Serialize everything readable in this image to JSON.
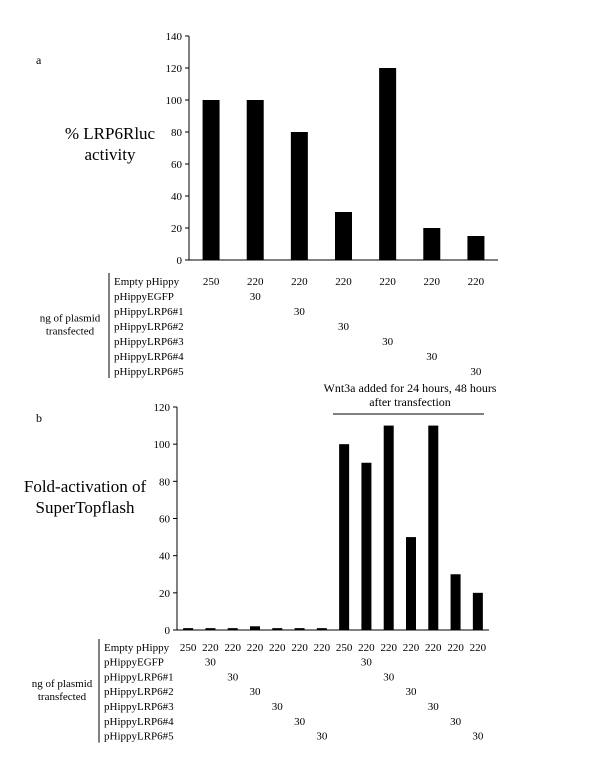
{
  "chart_data": [
    {
      "type": "bar",
      "panel_label": "a",
      "ylabel_lines": [
        "% LRP6Rluc",
        "activity"
      ],
      "ylim": [
        0,
        140
      ],
      "yticks": [
        0,
        20,
        40,
        60,
        80,
        100,
        120,
        140
      ],
      "values": [
        100,
        100,
        80,
        30,
        120,
        20,
        15
      ],
      "bar_color": "#000000",
      "table": {
        "group_label_lines": [
          "ng of plasmid",
          "transfected"
        ],
        "rows": [
          {
            "label": "Empty pHippy",
            "cells": [
              "250",
              "220",
              "220",
              "220",
              "220",
              "220",
              "220"
            ]
          },
          {
            "label": "pHippyEGFP",
            "cells": [
              "",
              "30",
              "",
              "",
              "",
              "",
              ""
            ]
          },
          {
            "label": "pHippyLRP6#1",
            "cells": [
              "",
              "",
              "30",
              "",
              "",
              "",
              ""
            ]
          },
          {
            "label": "pHippyLRP6#2",
            "cells": [
              "",
              "",
              "",
              "30",
              "",
              "",
              ""
            ]
          },
          {
            "label": "pHippyLRP6#3",
            "cells": [
              "",
              "",
              "",
              "",
              "30",
              "",
              ""
            ]
          },
          {
            "label": "pHippyLRP6#4",
            "cells": [
              "",
              "",
              "",
              "",
              "",
              "30",
              ""
            ]
          },
          {
            "label": "pHippyLRP6#5",
            "cells": [
              "",
              "",
              "",
              "",
              "",
              "",
              "30"
            ]
          }
        ]
      }
    },
    {
      "type": "bar",
      "panel_label": "b",
      "ylabel_lines": [
        "Fold-activation of",
        "SuperTopflash"
      ],
      "ylim": [
        0,
        120
      ],
      "yticks": [
        0,
        20,
        40,
        60,
        80,
        100,
        120
      ],
      "values": [
        1,
        1,
        1,
        2,
        1,
        1,
        1,
        100,
        90,
        110,
        50,
        110,
        30,
        20
      ],
      "bar_color": "#000000",
      "annotation": {
        "lines": [
          "Wnt3a added for 24 hours, 48 hours",
          "after transfection"
        ],
        "span": [
          7,
          13
        ]
      },
      "table": {
        "group_label_lines": [
          "ng of plasmid",
          "transfected"
        ],
        "rows": [
          {
            "label": "Empty pHippy",
            "cells": [
              "250",
              "220",
              "220",
              "220",
              "220",
              "220",
              "220",
              "250",
              "220",
              "220",
              "220",
              "220",
              "220",
              "220"
            ]
          },
          {
            "label": "pHippyEGFP",
            "cells": [
              "",
              "30",
              "",
              "",
              "",
              "",
              "",
              "",
              "30",
              "",
              "",
              "",
              "",
              ""
            ]
          },
          {
            "label": "pHippyLRP6#1",
            "cells": [
              "",
              "",
              "30",
              "",
              "",
              "",
              "",
              "",
              "",
              "30",
              "",
              "",
              "",
              ""
            ]
          },
          {
            "label": "pHippyLRP6#2",
            "cells": [
              "",
              "",
              "",
              "30",
              "",
              "",
              "",
              "",
              "",
              "",
              "30",
              "",
              "",
              ""
            ]
          },
          {
            "label": "pHippyLRP6#3",
            "cells": [
              "",
              "",
              "",
              "",
              "30",
              "",
              "",
              "",
              "",
              "",
              "",
              "30",
              "",
              ""
            ]
          },
          {
            "label": "pHippyLRP6#4",
            "cells": [
              "",
              "",
              "",
              "",
              "",
              "30",
              "",
              "",
              "",
              "",
              "",
              "",
              "30",
              ""
            ]
          },
          {
            "label": "pHippyLRP6#5",
            "cells": [
              "",
              "",
              "",
              "",
              "",
              "",
              "30",
              "",
              "",
              "",
              "",
              "",
              "",
              "30"
            ]
          }
        ]
      }
    }
  ]
}
